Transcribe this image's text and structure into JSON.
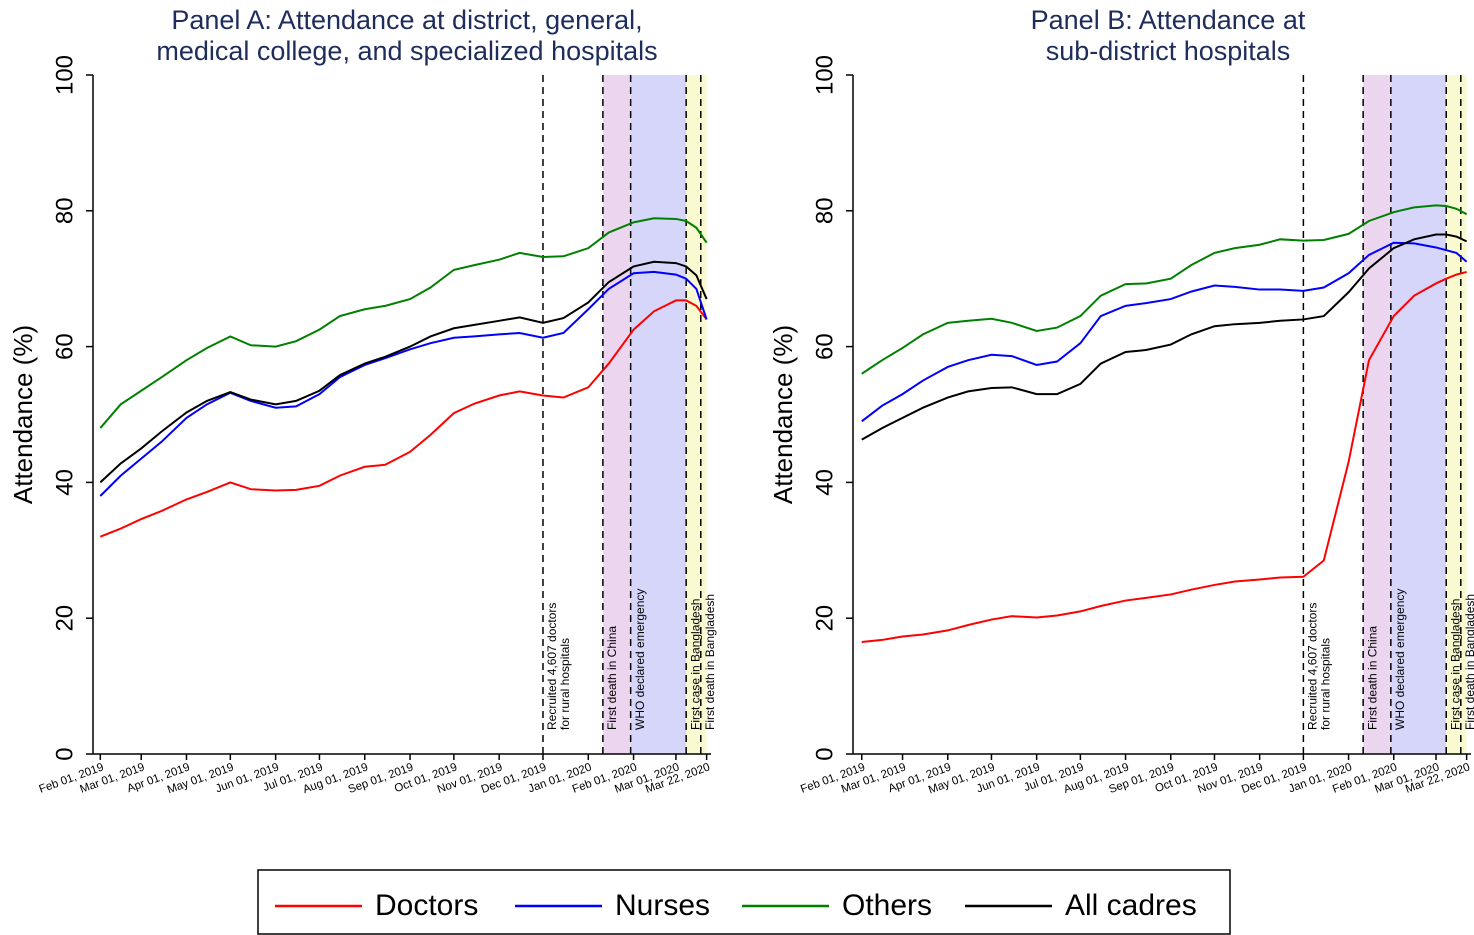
{
  "chart_data": [
    {
      "type": "line",
      "title": [
        "Panel A: Attendance at district, general,",
        "medical college, and specialized hospitals"
      ],
      "y_label": "Attendance (%)",
      "xlim": [
        "2019-01-27",
        "2020-03-25"
      ],
      "ylim": [
        0,
        100
      ],
      "yticks": [
        0,
        20,
        40,
        60,
        80,
        100
      ],
      "xticks": [
        {
          "value": "2019-02-01",
          "label": "Feb 01, 2019"
        },
        {
          "value": "2019-03-01",
          "label": "Mar 01, 2019"
        },
        {
          "value": "2019-04-01",
          "label": "Apr 01, 2019"
        },
        {
          "value": "2019-05-01",
          "label": "May 01, 2019"
        },
        {
          "value": "2019-06-01",
          "label": "Jun 01, 2019"
        },
        {
          "value": "2019-07-01",
          "label": "Jul 01, 2019"
        },
        {
          "value": "2019-08-01",
          "label": "Aug 01, 2019"
        },
        {
          "value": "2019-09-01",
          "label": "Sep 01, 2019"
        },
        {
          "value": "2019-10-01",
          "label": "Oct 01, 2019"
        },
        {
          "value": "2019-11-01",
          "label": "Nov 01, 2019"
        },
        {
          "value": "2019-12-01",
          "label": "Dec 01, 2019"
        },
        {
          "value": "2020-01-01",
          "label": "Jan 01, 2020"
        },
        {
          "value": "2020-02-01",
          "label": "Feb 01, 2020"
        },
        {
          "value": "2020-03-01",
          "label": "Mar 01, 2020"
        },
        {
          "value": "2020-03-22",
          "label": "Mar 22, 2020"
        }
      ],
      "bands": [
        {
          "start": "2020-01-11",
          "end": "2020-01-30",
          "color": "#ecd6ef"
        },
        {
          "start": "2020-01-30",
          "end": "2020-03-08",
          "color": "#d6d6fb"
        },
        {
          "start": "2020-03-08",
          "end": "2020-03-22",
          "color": "#fafad0"
        }
      ],
      "annotations": [
        {
          "x": "2019-12-01",
          "label": [
            "Recruited 4,607 doctors",
            "for rural hospitals"
          ]
        },
        {
          "x": "2020-01-11",
          "label": [
            "First death in China"
          ]
        },
        {
          "x": "2020-01-30",
          "label": [
            "WHO declared emergency"
          ]
        },
        {
          "x": "2020-03-08",
          "label": [
            "First case in Bangladesh"
          ]
        },
        {
          "x": "2020-03-18",
          "label": [
            "First death in Bangladesh"
          ]
        }
      ],
      "x": [
        "2019-02-01",
        "2019-02-15",
        "2019-03-01",
        "2019-03-15",
        "2019-04-01",
        "2019-04-15",
        "2019-05-01",
        "2019-05-15",
        "2019-06-01",
        "2019-06-15",
        "2019-07-01",
        "2019-07-15",
        "2019-08-01",
        "2019-08-15",
        "2019-09-01",
        "2019-09-15",
        "2019-10-01",
        "2019-10-15",
        "2019-11-01",
        "2019-11-15",
        "2019-12-01",
        "2019-12-15",
        "2020-01-01",
        "2020-01-15",
        "2020-02-01",
        "2020-02-15",
        "2020-03-01",
        "2020-03-08",
        "2020-03-15",
        "2020-03-22"
      ],
      "series": [
        {
          "name": "Doctors",
          "color": "#ff0000",
          "values": [
            32,
            33.2,
            34.6,
            35.8,
            37.5,
            38.6,
            40,
            39,
            38.8,
            38.9,
            39.5,
            41,
            42.3,
            42.6,
            44.5,
            47,
            50.2,
            51.6,
            52.8,
            53.4,
            52.8,
            52.5,
            54,
            57.5,
            62.5,
            65.2,
            66.8,
            66.8,
            66,
            64
          ]
        },
        {
          "name": "Nurses",
          "color": "#0000ff",
          "values": [
            38,
            41,
            43.5,
            46,
            49.5,
            51.5,
            53.2,
            52,
            51,
            51.2,
            53,
            55.5,
            57.3,
            58.3,
            59.6,
            60.5,
            61.3,
            61.5,
            61.8,
            62,
            61.3,
            62,
            65.5,
            68.5,
            70.8,
            71,
            70.6,
            70,
            68.5,
            64
          ]
        },
        {
          "name": "Others",
          "color": "#008000",
          "values": [
            48,
            51.5,
            53.5,
            55.5,
            58,
            59.8,
            61.5,
            60.2,
            60,
            60.8,
            62.5,
            64.5,
            65.5,
            66,
            67,
            68.7,
            71.3,
            72,
            72.8,
            73.8,
            73.2,
            73.3,
            74.5,
            76.8,
            78.3,
            78.9,
            78.8,
            78.5,
            77.5,
            75.3
          ]
        },
        {
          "name": "All cadres",
          "color": "#000000",
          "values": [
            40,
            42.8,
            45,
            47.5,
            50.3,
            52,
            53.3,
            52.2,
            51.5,
            52,
            53.5,
            55.8,
            57.5,
            58.5,
            60,
            61.5,
            62.7,
            63.2,
            63.8,
            64.3,
            63.5,
            64.2,
            66.5,
            69.5,
            71.8,
            72.5,
            72.3,
            71.8,
            70.5,
            67
          ]
        }
      ]
    },
    {
      "type": "line",
      "title": [
        "Panel B: Attendance at",
        "sub-district hospitals"
      ],
      "y_label": "Attendance (%)",
      "xlim": [
        "2019-01-26",
        "2020-03-25"
      ],
      "ylim": [
        0,
        100
      ],
      "yticks": [
        0,
        20,
        40,
        60,
        80,
        100
      ],
      "xticks": [
        {
          "value": "2019-02-01",
          "label": "Feb 01, 2019"
        },
        {
          "value": "2019-03-01",
          "label": "Mar 01, 2019"
        },
        {
          "value": "2019-04-01",
          "label": "Apr 01, 2019"
        },
        {
          "value": "2019-05-01",
          "label": "May 01, 2019"
        },
        {
          "value": "2019-06-01",
          "label": "Jun 01, 2019"
        },
        {
          "value": "2019-07-01",
          "label": "Jul 01, 2019"
        },
        {
          "value": "2019-08-01",
          "label": "Aug 01, 2019"
        },
        {
          "value": "2019-09-01",
          "label": "Sep 01, 2019"
        },
        {
          "value": "2019-10-01",
          "label": "Oct 01, 2019"
        },
        {
          "value": "2019-11-01",
          "label": "Nov 01, 2019"
        },
        {
          "value": "2019-12-01",
          "label": "Dec 01, 2019"
        },
        {
          "value": "2020-01-01",
          "label": "Jan 01, 2020"
        },
        {
          "value": "2020-02-01",
          "label": "Feb 01, 2020"
        },
        {
          "value": "2020-03-01",
          "label": "Mar 01, 2020"
        },
        {
          "value": "2020-03-22",
          "label": "Mar 22, 2020"
        }
      ],
      "bands": [
        {
          "start": "2020-01-11",
          "end": "2020-01-30",
          "color": "#ecd6ef"
        },
        {
          "start": "2020-01-30",
          "end": "2020-03-08",
          "color": "#d6d6fb"
        },
        {
          "start": "2020-03-08",
          "end": "2020-03-22",
          "color": "#fafad0"
        }
      ],
      "annotations": [
        {
          "x": "2019-12-01",
          "label": [
            "Recruited 4,607 doctors",
            "for rural hospitals"
          ]
        },
        {
          "x": "2020-01-11",
          "label": [
            "First death in China"
          ]
        },
        {
          "x": "2020-01-30",
          "label": [
            "WHO declared emergency"
          ]
        },
        {
          "x": "2020-03-08",
          "label": [
            "First case in Bangladesh"
          ]
        },
        {
          "x": "2020-03-18",
          "label": [
            "First death in Bangladesh"
          ]
        }
      ],
      "x": [
        "2019-02-01",
        "2019-02-15",
        "2019-03-01",
        "2019-03-15",
        "2019-04-01",
        "2019-04-15",
        "2019-05-01",
        "2019-05-15",
        "2019-06-01",
        "2019-06-15",
        "2019-07-01",
        "2019-07-15",
        "2019-08-01",
        "2019-08-15",
        "2019-09-01",
        "2019-09-15",
        "2019-10-01",
        "2019-10-15",
        "2019-11-01",
        "2019-11-15",
        "2019-12-01",
        "2019-12-15",
        "2020-01-01",
        "2020-01-15",
        "2020-02-01",
        "2020-02-15",
        "2020-03-01",
        "2020-03-08",
        "2020-03-15",
        "2020-03-22"
      ],
      "series": [
        {
          "color": "#ff0000",
          "values": [
            16.5,
            16.8,
            17.3,
            17.6,
            18.2,
            19,
            19.8,
            20.3,
            20.1,
            20.4,
            21,
            21.8,
            22.6,
            23,
            23.5,
            24.2,
            24.9,
            25.4,
            25.7,
            26,
            26.1,
            28.5,
            43,
            58,
            64.5,
            67.5,
            69.3,
            70,
            70.6,
            71
          ]
        },
        {
          "color": "#0000ff",
          "values": [
            49,
            51.3,
            53,
            55,
            57,
            58,
            58.8,
            58.6,
            57.3,
            57.8,
            60.5,
            64.5,
            66,
            66.4,
            67,
            68.1,
            69,
            68.8,
            68.4,
            68.4,
            68.2,
            68.7,
            70.8,
            73.5,
            75.3,
            75.2,
            74.6,
            74.2,
            73.8,
            72.5
          ]
        },
        {
          "color": "#008000",
          "values": [
            56,
            58,
            59.8,
            61.8,
            63.5,
            63.8,
            64.1,
            63.5,
            62.3,
            62.8,
            64.5,
            67.5,
            69.2,
            69.3,
            70,
            72,
            73.8,
            74.5,
            75,
            75.8,
            75.6,
            75.7,
            76.6,
            78.5,
            79.8,
            80.5,
            80.8,
            80.7,
            80.3,
            79.5
          ]
        },
        {
          "color": "#000000",
          "values": [
            46.3,
            48,
            49.5,
            51,
            52.5,
            53.4,
            53.9,
            54,
            53,
            53,
            54.5,
            57.5,
            59.2,
            59.5,
            60.3,
            61.8,
            63,
            63.3,
            63.5,
            63.8,
            64,
            64.5,
            68,
            71.5,
            74.5,
            75.8,
            76.5,
            76.5,
            76.2,
            75.5
          ]
        }
      ]
    }
  ]
}
